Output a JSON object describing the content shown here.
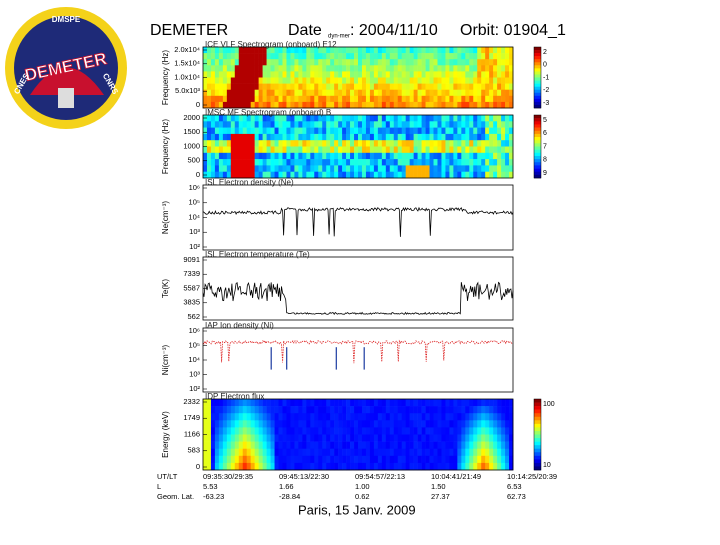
{
  "header": {
    "title": "DEMETER",
    "date_label": "Date",
    "date_sub": "dyn-mer",
    "date": ": 2004/11/10",
    "orbit": "Orbit: 01904_1"
  },
  "logo": {
    "top": "DMSPE",
    "name": "DEMETER",
    "left": "CNES",
    "right": "CNRS"
  },
  "panels": [
    {
      "title": "ICE VLF Spectrogram (onboard) E12",
      "ylabel": "Frequency (Hz)",
      "yticks": [
        "2.0x10⁴",
        "1.5x10⁴",
        "1.0x10⁴",
        "5.0x10³",
        "0"
      ],
      "colorbar": [
        "2",
        "0",
        "-1",
        "-2",
        "-3"
      ]
    },
    {
      "title": "IMSC MF Spectrogram (onboard) B",
      "ylabel": "Frequency (Hz)",
      "yticks": [
        "2000",
        "1500",
        "1000",
        "500",
        "0"
      ],
      "colorbar": [
        "5",
        "6",
        "7",
        "8",
        "9"
      ]
    },
    {
      "title": "ISL Electron density (Ne)",
      "ylabel": "Ne(cm⁻³)",
      "yticks": [
        "10⁶",
        "10⁵",
        "10⁴",
        "10³",
        "10²"
      ],
      "colorbar": []
    },
    {
      "title": "ISL Electron temperature (Te)",
      "ylabel": "Te(K)",
      "yticks": [
        "9091",
        "7339",
        "5587",
        "3835",
        "562"
      ],
      "colorbar": []
    },
    {
      "title": "IAP Ion density (Ni)",
      "ylabel": "Ni(cm⁻³)",
      "yticks": [
        "10⁶",
        "10⁵",
        "10⁴",
        "10³",
        "10²"
      ],
      "colorbar": []
    },
    {
      "title": "IDP Electron flux",
      "ylabel": "Energy (keV)",
      "yticks": [
        "2332",
        "1749",
        "1166",
        "583",
        "0"
      ],
      "colorbar": [
        "100",
        "10"
      ]
    }
  ],
  "table": {
    "rows": [
      [
        "UT/LT",
        "09:35:30/29:35",
        "09:45:13/22:30",
        "09:54:57/22:13",
        "10:04:41/21:49",
        "10:14:25/20:39"
      ],
      [
        "L",
        "5.53",
        "1.66",
        "1.00",
        "1.50",
        "6.53"
      ],
      [
        "Geom. Lat.",
        "-63.23",
        "-28.84",
        "0.62",
        "27.37",
        "62.73"
      ]
    ]
  },
  "footer": "Paris, 15 Janv. 2009"
}
